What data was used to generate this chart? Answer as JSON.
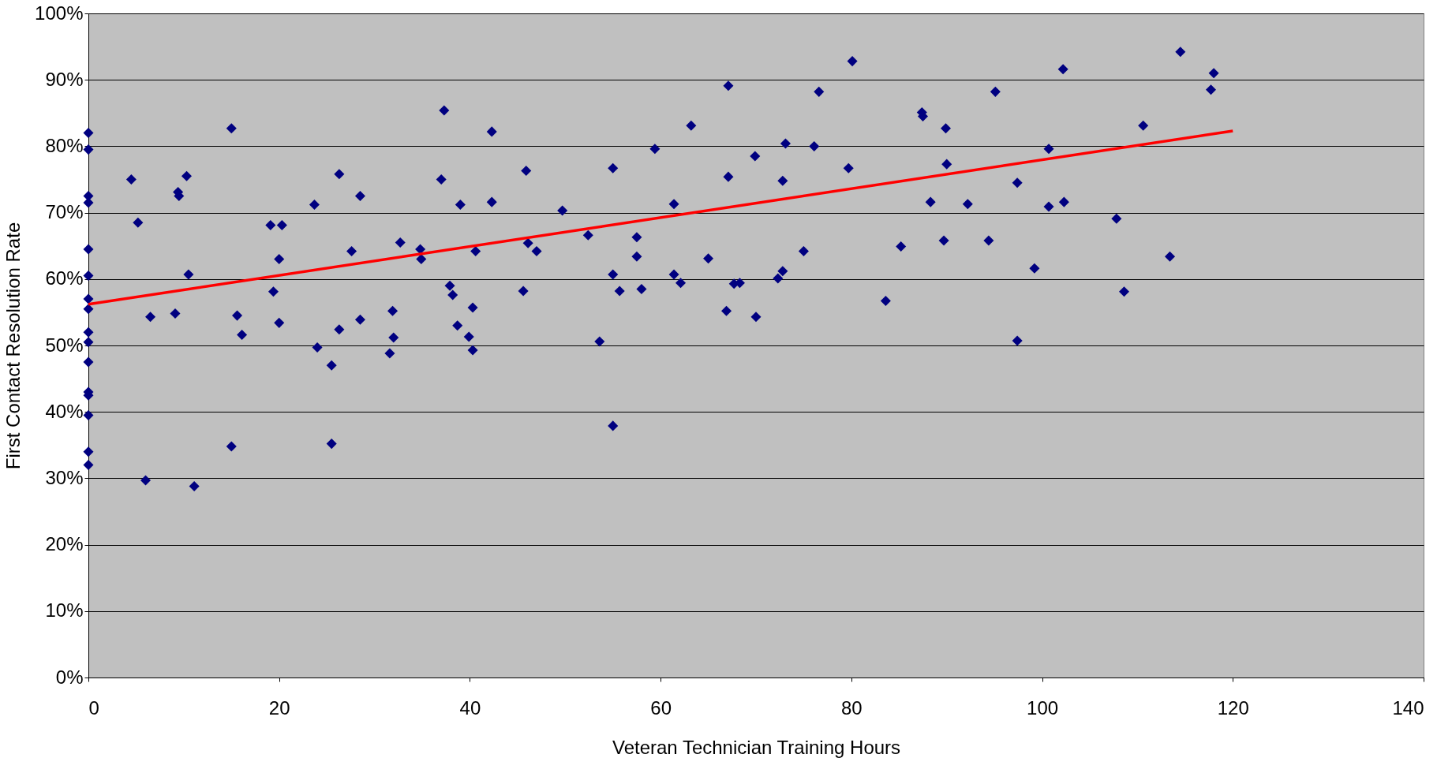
{
  "chart_data": {
    "type": "scatter",
    "xlabel": "Veteran Technician Training Hours",
    "ylabel": "First Contact Resolution Rate",
    "xlim": [
      0,
      140
    ],
    "xticks": [
      0,
      20,
      40,
      60,
      80,
      100,
      120,
      140
    ],
    "ylim": [
      0,
      100
    ],
    "yticks": [
      {
        "value": 0,
        "label": "0%"
      },
      {
        "value": 10,
        "label": "10%"
      },
      {
        "value": 20,
        "label": "20%"
      },
      {
        "value": 30,
        "label": "30%"
      },
      {
        "value": 40,
        "label": "40%"
      },
      {
        "value": 50,
        "label": "50%"
      },
      {
        "value": 60,
        "label": "60%"
      },
      {
        "value": 70,
        "label": "70%"
      },
      {
        "value": 80,
        "label": "80%"
      },
      {
        "value": 90,
        "label": "90%"
      },
      {
        "value": 100,
        "label": "100%"
      }
    ],
    "grid": "y",
    "marker": "diamond",
    "legend": false,
    "series": [
      {
        "color": "#000080",
        "x": [
          0,
          0,
          0,
          0,
          0,
          0,
          0,
          0,
          0,
          0,
          0,
          0,
          0,
          0,
          0,
          0,
          4.5,
          5.2,
          6.0,
          6.5,
          9.1,
          9.4,
          9.5,
          10.3,
          10.5,
          11.1,
          15,
          15,
          15.6,
          16.1,
          19.1,
          19.4,
          20,
          20.3,
          20,
          23.7,
          24,
          25.5,
          25.5,
          26.3,
          26.3,
          27.6,
          28.5,
          28.5,
          31.6,
          31.9,
          32,
          32.7,
          34.8,
          34.9,
          37,
          37.3,
          37.9,
          38.2,
          38.7,
          39,
          39.9,
          40.3,
          40.3,
          40.6,
          42.3,
          42.3,
          45.6,
          45.9,
          46.1,
          47,
          49.7,
          52.4,
          53.6,
          55,
          55,
          55,
          55.7,
          57.5,
          57.5,
          58,
          59.4,
          61.4,
          61.4,
          62.1,
          63.2,
          65,
          66.9,
          67.1,
          67.1,
          67.7,
          68.3,
          69.9,
          70,
          72.3,
          72.8,
          72.8,
          73.1,
          75,
          76.1,
          76.6,
          79.7,
          80.1,
          83.6,
          85.2,
          87.4,
          87.5,
          88.3,
          89.7,
          90,
          89.9,
          92.2,
          94.4,
          95.1,
          97.4,
          97.4,
          99.2,
          100.7,
          100.7,
          102.2,
          102.3,
          107.8,
          108.6,
          110.6,
          113.4,
          114.5,
          117.7,
          118
        ],
        "values": [
          82,
          79.5,
          72.5,
          71.5,
          64.5,
          60.5,
          57,
          55.5,
          52,
          50.5,
          47.5,
          43,
          42.5,
          39.5,
          34,
          32,
          75,
          68.5,
          29.7,
          54.3,
          54.8,
          73.1,
          72.5,
          75.5,
          60.7,
          28.8,
          82.7,
          34.8,
          54.5,
          51.6,
          68.1,
          58.1,
          63,
          68.1,
          53.4,
          71.2,
          49.7,
          47,
          35.2,
          75.8,
          52.4,
          64.2,
          72.5,
          53.9,
          48.8,
          55.2,
          51.2,
          65.5,
          64.5,
          63,
          75,
          85.4,
          59,
          57.6,
          53,
          71.2,
          51.3,
          49.3,
          55.7,
          64.2,
          82.2,
          71.6,
          58.2,
          76.3,
          65.4,
          64.2,
          70.3,
          66.6,
          50.6,
          76.7,
          60.7,
          37.9,
          58.2,
          66.3,
          63.4,
          58.5,
          79.6,
          71.3,
          60.7,
          59.4,
          83.1,
          63.1,
          55.2,
          89.1,
          75.4,
          59.3,
          59.4,
          78.5,
          54.3,
          60.1,
          61.2,
          74.8,
          80.4,
          64.2,
          80,
          88.2,
          76.7,
          92.8,
          56.7,
          64.9,
          85.1,
          84.5,
          71.6,
          65.8,
          77.3,
          82.7,
          71.3,
          65.8,
          88.2,
          50.7,
          74.5,
          61.6,
          79.6,
          70.9,
          91.6,
          71.6,
          69.1,
          58.1,
          83.1,
          63.4,
          94.2,
          88.5,
          91
        ]
      },
      {
        "type": "line",
        "marker": "none",
        "color": "#ff0000",
        "x": [
          0,
          120
        ],
        "values": [
          56.2,
          82.3
        ]
      }
    ]
  }
}
